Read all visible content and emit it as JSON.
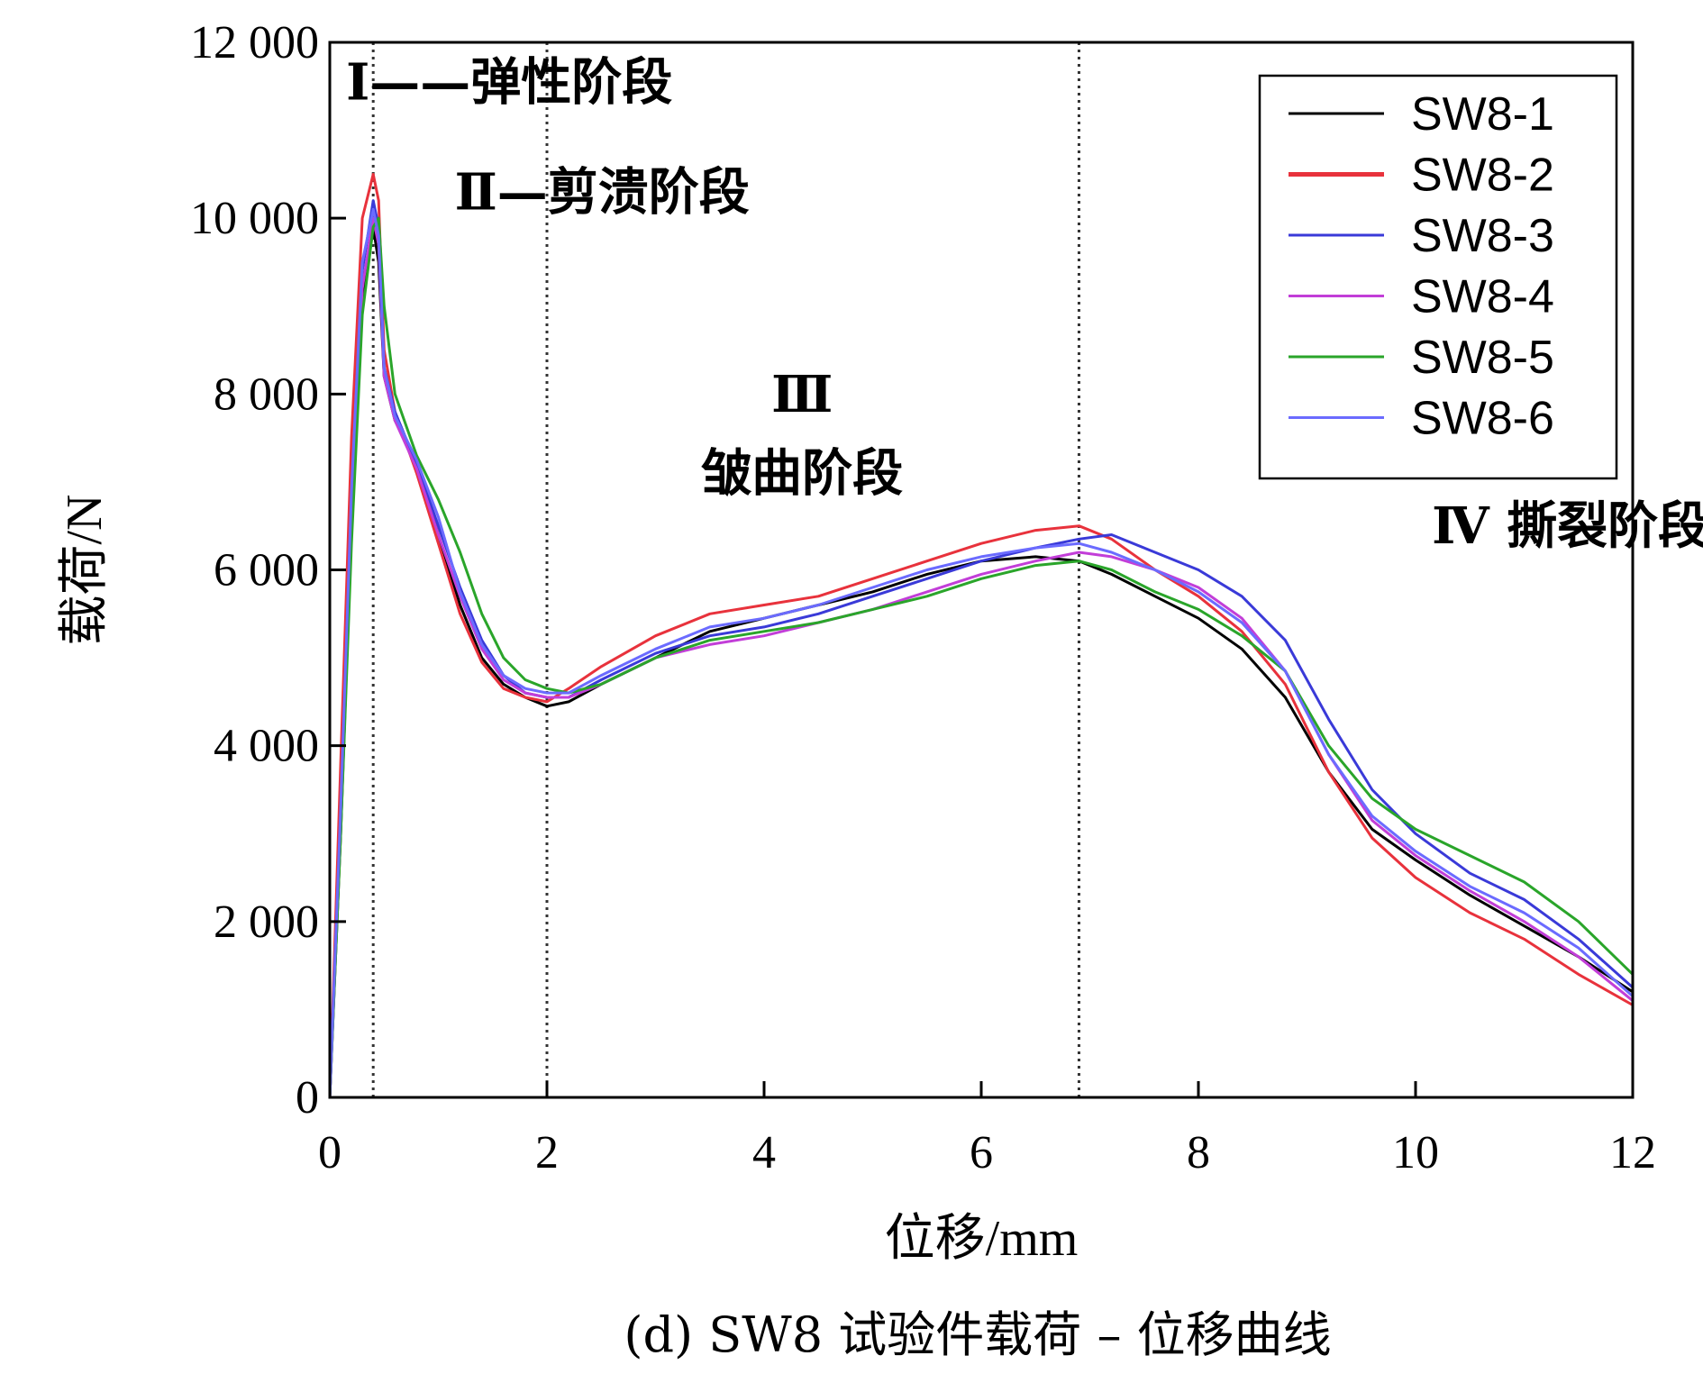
{
  "chart_data": {
    "type": "line",
    "caption": "(d) SW8 试验件载荷 – 位移曲线",
    "xlabel": "位移/mm",
    "ylabel": "载荷/N",
    "xlim": [
      0,
      12
    ],
    "ylim": [
      0,
      12000
    ],
    "xticks": [
      0,
      2,
      4,
      6,
      8,
      10,
      12
    ],
    "xtick_labels": [
      "0",
      "2",
      "4",
      "6",
      "8",
      "10",
      "12"
    ],
    "yticks": [
      0,
      2000,
      4000,
      6000,
      8000,
      10000,
      12000
    ],
    "ytick_labels": [
      "0",
      "2 000",
      "4 000",
      "6 000",
      "8 000",
      "10 000",
      "12 000"
    ],
    "legend_position": "top-right",
    "stage_boundaries": [
      0.4,
      2.0,
      6.9
    ],
    "stage_labels": [
      {
        "text": "Ⅰ——弹性阶段",
        "x": 0.15,
        "y": 11350
      },
      {
        "text": "Ⅱ—剪溃阶段",
        "x": 1.15,
        "y": 10100
      },
      {
        "text": "Ⅲ",
        "x": 4.35,
        "y": 7800
      },
      {
        "text": "皱曲阶段",
        "x": 4.35,
        "y": 6900
      },
      {
        "text": "Ⅳ 撕裂阶段",
        "x": 10.15,
        "y": 6300
      }
    ],
    "series": [
      {
        "name": "SW8-1",
        "color": "#000000",
        "x": [
          0,
          0.1,
          0.2,
          0.3,
          0.4,
          0.45,
          0.5,
          0.6,
          0.8,
          1.0,
          1.2,
          1.4,
          1.6,
          1.8,
          2.0,
          2.2,
          2.5,
          3.0,
          3.5,
          4.0,
          4.5,
          5.0,
          5.5,
          6.0,
          6.5,
          6.9,
          7.2,
          7.6,
          8.0,
          8.4,
          8.8,
          9.2,
          9.6,
          10.0,
          10.5,
          11.0,
          11.5,
          12.0
        ],
        "y": [
          0,
          3000,
          6500,
          9000,
          9900,
          9500,
          8200,
          7700,
          7200,
          6400,
          5600,
          5000,
          4700,
          4550,
          4450,
          4500,
          4700,
          5000,
          5300,
          5450,
          5600,
          5750,
          5950,
          6100,
          6150,
          6100,
          5950,
          5700,
          5450,
          5100,
          4550,
          3700,
          3050,
          2700,
          2300,
          1950,
          1600,
          1200
        ]
      },
      {
        "name": "SW8-2",
        "color": "#e8323c",
        "x": [
          0,
          0.1,
          0.2,
          0.3,
          0.4,
          0.45,
          0.5,
          0.6,
          0.8,
          1.0,
          1.2,
          1.4,
          1.6,
          1.8,
          2.0,
          2.2,
          2.5,
          3.0,
          3.5,
          4.0,
          4.5,
          5.0,
          5.5,
          6.0,
          6.5,
          6.9,
          7.2,
          7.6,
          8.0,
          8.4,
          8.8,
          9.2,
          9.6,
          10.0,
          10.5,
          11.0,
          11.5,
          12.0
        ],
        "y": [
          0,
          3800,
          7500,
          10000,
          10500,
          10200,
          8500,
          7800,
          7100,
          6300,
          5500,
          4950,
          4650,
          4550,
          4500,
          4650,
          4900,
          5250,
          5500,
          5600,
          5700,
          5900,
          6100,
          6300,
          6450,
          6500,
          6350,
          6000,
          5700,
          5300,
          4700,
          3700,
          2950,
          2500,
          2100,
          1800,
          1400,
          1050
        ]
      },
      {
        "name": "SW8-3",
        "color": "#3a3ad8",
        "x": [
          0,
          0.1,
          0.2,
          0.3,
          0.4,
          0.45,
          0.5,
          0.6,
          0.8,
          1.0,
          1.2,
          1.4,
          1.6,
          1.8,
          2.0,
          2.2,
          2.5,
          3.0,
          3.5,
          4.0,
          4.5,
          5.0,
          5.5,
          6.0,
          6.5,
          6.9,
          7.2,
          7.6,
          8.0,
          8.4,
          8.8,
          9.2,
          9.6,
          10.0,
          10.5,
          11.0,
          11.5,
          12.0
        ],
        "y": [
          0,
          3200,
          6800,
          9400,
          10200,
          9900,
          8300,
          7800,
          7200,
          6500,
          5800,
          5200,
          4800,
          4600,
          4550,
          4550,
          4750,
          5050,
          5250,
          5350,
          5500,
          5700,
          5900,
          6100,
          6250,
          6350,
          6400,
          6200,
          6000,
          5700,
          5200,
          4300,
          3500,
          3000,
          2550,
          2250,
          1800,
          1250
        ]
      },
      {
        "name": "SW8-4",
        "color": "#c23ed8",
        "x": [
          0,
          0.1,
          0.2,
          0.3,
          0.4,
          0.45,
          0.5,
          0.6,
          0.8,
          1.0,
          1.2,
          1.4,
          1.6,
          1.8,
          2.0,
          2.2,
          2.5,
          3.0,
          3.5,
          4.0,
          4.5,
          5.0,
          5.5,
          6.0,
          6.5,
          6.9,
          7.2,
          7.6,
          8.0,
          8.4,
          8.8,
          9.2,
          9.6,
          10.0,
          10.5,
          11.0,
          11.5,
          12.0
        ],
        "y": [
          0,
          3100,
          6600,
          9200,
          10000,
          9700,
          8200,
          7700,
          7150,
          6400,
          5700,
          5100,
          4750,
          4600,
          4550,
          4550,
          4700,
          5000,
          5150,
          5250,
          5400,
          5550,
          5750,
          5950,
          6100,
          6200,
          6150,
          6000,
          5800,
          5450,
          4850,
          3900,
          3150,
          2750,
          2350,
          2000,
          1600,
          1100
        ]
      },
      {
        "name": "SW8-5",
        "color": "#2aa52a",
        "x": [
          0,
          0.1,
          0.2,
          0.3,
          0.4,
          0.45,
          0.5,
          0.6,
          0.8,
          1.0,
          1.2,
          1.4,
          1.6,
          1.8,
          2.0,
          2.2,
          2.5,
          3.0,
          3.5,
          4.0,
          4.5,
          5.0,
          5.5,
          6.0,
          6.5,
          6.9,
          7.2,
          7.6,
          8.0,
          8.4,
          8.8,
          9.2,
          9.6,
          10.0,
          10.5,
          11.0,
          11.5,
          12.0
        ],
        "y": [
          0,
          3000,
          6300,
          8900,
          9900,
          10000,
          9000,
          8000,
          7300,
          6800,
          6200,
          5500,
          5000,
          4750,
          4650,
          4600,
          4700,
          5000,
          5200,
          5300,
          5400,
          5550,
          5700,
          5900,
          6050,
          6100,
          6000,
          5750,
          5550,
          5250,
          4850,
          4000,
          3400,
          3050,
          2750,
          2450,
          2000,
          1400
        ]
      },
      {
        "name": "SW8-6",
        "color": "#6b6bff",
        "x": [
          0,
          0.1,
          0.2,
          0.3,
          0.4,
          0.45,
          0.5,
          0.6,
          0.8,
          1.0,
          1.2,
          1.4,
          1.6,
          1.8,
          2.0,
          2.2,
          2.5,
          3.0,
          3.5,
          4.0,
          4.5,
          5.0,
          5.5,
          6.0,
          6.5,
          6.9,
          7.2,
          7.6,
          8.0,
          8.4,
          8.8,
          9.2,
          9.6,
          10.0,
          10.5,
          11.0,
          11.5,
          12.0
        ],
        "y": [
          0,
          3300,
          6900,
          9500,
          10100,
          9800,
          8300,
          7750,
          7250,
          6600,
          5750,
          5150,
          4800,
          4650,
          4600,
          4600,
          4800,
          5100,
          5350,
          5450,
          5600,
          5800,
          6000,
          6150,
          6250,
          6300,
          6200,
          6000,
          5750,
          5400,
          4850,
          3900,
          3200,
          2800,
          2400,
          2100,
          1700,
          1150
        ]
      }
    ]
  }
}
